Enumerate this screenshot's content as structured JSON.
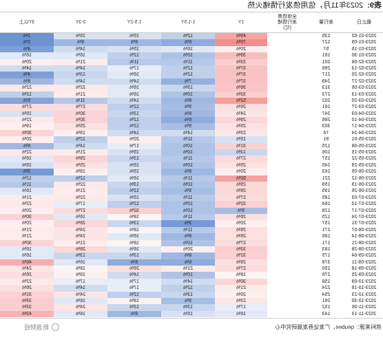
{
  "title": {
    "label": "表9:",
    "text": "2023年11月，信用债发行情绪火热"
  },
  "headers": [
    "截止日",
    "发行量",
    "全体债券发行情绪",
    "1Y",
    "1-1.5Y",
    "1.5-2Y",
    "2-3Y",
    "3Y以上"
  ],
  "header_stack_top": "全体债券",
  "header_stack_mid": "发行情绪",
  "header_stack_bot": "(亿)",
  "rows": [
    {
      "d": "2023-01-02",
      "v": "135",
      "c": [
        "49%",
        "12%",
        "15%",
        "15%",
        "2%"
      ]
    },
    {
      "d": "2023-01-09",
      "v": "127",
      "c": [
        "70%",
        "6%",
        "8%",
        "8%",
        "0%"
      ]
    },
    {
      "d": "2023-01-16",
      "v": "57",
      "c": [
        "20%",
        "16%",
        "15%",
        "14%",
        "4%"
      ]
    },
    {
      "d": "2023-01-30",
      "v": "161",
      "c": [
        "39%",
        "10%",
        "12%",
        "16%",
        "16%"
      ]
    },
    {
      "d": "2023-02-06",
      "v": "201",
      "c": [
        "33%",
        "11%",
        "11%",
        "21%",
        "20%"
      ]
    },
    {
      "d": "2023-02-13",
      "v": "266",
      "c": [
        "37%",
        "12%",
        "17%",
        "14%",
        "14%"
      ]
    },
    {
      "d": "2023-02-20",
      "v": "217",
      "c": [
        "37%",
        "12%",
        "16%",
        "13%",
        "4%"
      ]
    },
    {
      "d": "2023-02-27",
      "v": "249",
      "c": [
        "37%",
        "7%",
        "14%",
        "14%",
        "8%"
      ]
    },
    {
      "d": "2023-03-06",
      "v": "313",
      "c": [
        "36%",
        "13%",
        "16%",
        "22%",
        "22%"
      ]
    },
    {
      "d": "2023-03-13",
      "v": "273",
      "c": [
        "33%",
        "10%",
        "16%",
        "21%",
        "12%"
      ]
    },
    {
      "d": "2023-03-20",
      "v": "202",
      "c": [
        "52%",
        "8%",
        "14%",
        "11%",
        "5%"
      ]
    },
    {
      "d": "2023-03-27",
      "v": "161",
      "c": [
        "26%",
        "9%",
        "12%",
        "27%",
        "27%"
      ]
    },
    {
      "d": "2023-04-03",
      "v": "247",
      "c": [
        "24%",
        "8%",
        "13%",
        "30%",
        "15%"
      ]
    },
    {
      "d": "2023-04-10",
      "v": "286",
      "c": [
        "29%",
        "6%",
        "12%",
        "30%",
        "22%"
      ]
    },
    {
      "d": "2023-04-17",
      "v": "303",
      "c": [
        "25%",
        "9%",
        "12%",
        "25%",
        "19%"
      ]
    },
    {
      "d": "2023-04-24",
      "v": "74",
      "c": [
        "23%",
        "14%",
        "14%",
        "19%",
        "30%"
      ]
    },
    {
      "d": "2023-05-01",
      "v": "91",
      "c": [
        "15%",
        "11%",
        "20%",
        "12%",
        "20%"
      ]
    },
    {
      "d": "2023-05-08",
      "v": "125",
      "c": [
        "31%",
        "10%",
        "17%",
        "14%",
        "8%"
      ]
    },
    {
      "d": "2023-05-15",
      "v": "106",
      "c": [
        "13%",
        "10%",
        "15%",
        "21%",
        "22%"
      ]
    },
    {
      "d": "2023-05-22",
      "v": "157",
      "c": [
        "27%",
        "11%",
        "13%",
        "29%",
        "16%"
      ]
    },
    {
      "d": "2023-05-29",
      "v": "245",
      "c": [
        "25%",
        "10%",
        "15%",
        "25%",
        "15%"
      ]
    },
    {
      "d": "2023-06-05",
      "v": "163",
      "c": [
        "20%",
        "8%",
        "15%",
        "19%",
        "3%"
      ]
    },
    {
      "d": "2023-06-12",
      "v": "221",
      "c": [
        "50%",
        "11%",
        "16%",
        "12%",
        "12%"
      ]
    },
    {
      "d": "2023-06-19",
      "v": "159",
      "c": [
        "29%",
        "10%",
        "13%",
        "22%",
        "11%"
      ]
    },
    {
      "d": "2023-06-26",
      "v": "195",
      "c": [
        "28%",
        "9%",
        "12%",
        "21%",
        "16%"
      ]
    },
    {
      "d": "2023-07-03",
      "v": "185",
      "c": [
        "27%",
        "11%",
        "15%",
        "22%",
        "21%"
      ]
    },
    {
      "d": "2023-07-10",
      "v": "164",
      "c": [
        "32%",
        "10%",
        "12%",
        "17%",
        "22%"
      ]
    },
    {
      "d": "2023-07-17",
      "v": "128",
      "c": [
        "9%",
        "10%",
        "32%",
        "27%",
        "20%"
      ]
    },
    {
      "d": "2023-07-24",
      "v": "125",
      "c": [
        "26%",
        "11%",
        "18%",
        "16%",
        "30%"
      ]
    },
    {
      "d": "2023-07-31",
      "v": "157",
      "c": [
        "20%",
        "3%",
        "13%",
        "28%",
        "20%"
      ]
    },
    {
      "d": "2023-08-07",
      "v": "271",
      "c": [
        "26%",
        "11%",
        "18%",
        "24%",
        "21%"
      ]
    },
    {
      "d": "2023-08-14",
      "v": "186",
      "c": [
        "26%",
        "8%",
        "16%",
        "24%",
        "21%"
      ]
    },
    {
      "d": "2023-08-21",
      "v": "171",
      "c": [
        "27%",
        "10%",
        "18%",
        "21%",
        "30%"
      ]
    },
    {
      "d": "2023-08-28",
      "v": "183",
      "c": [
        "33%",
        "20%",
        "16%",
        "28%",
        "16%"
      ]
    },
    {
      "d": "2023-09-04",
      "v": "175",
      "c": [
        "32%",
        "8%",
        "13%",
        "13%",
        "16%"
      ]
    },
    {
      "d": "2023-09-11",
      "v": "378",
      "c": [
        "26%",
        "6%",
        "6%",
        "16%",
        "46%"
      ]
    },
    {
      "d": "2023-09-18",
      "v": "150",
      "c": [
        "27%",
        "21%",
        "26%",
        "18%",
        "24%"
      ]
    },
    {
      "d": "2023-09-25",
      "v": "276",
      "c": [
        "18%",
        "10%",
        "14%",
        "19%",
        "26%"
      ]
    },
    {
      "d": "2023-10-09",
      "v": "158",
      "c": [
        "30%",
        "14%",
        "17%",
        "17%",
        "22%"
      ]
    },
    {
      "d": "2023-10-16",
      "v": "224",
      "c": [
        "21%",
        "12%",
        "17%",
        "14%",
        "26%"
      ]
    },
    {
      "d": "2023-10-23",
      "v": "254",
      "c": [
        "20%",
        "13%",
        "12%",
        "24%",
        "31%"
      ]
    },
    {
      "d": "2023-10-30",
      "v": "261",
      "c": [
        "23%",
        "9%",
        "19%",
        "16%",
        "33%"
      ]
    },
    {
      "d": "2023-11-06",
      "v": "152",
      "c": [
        "17%",
        "13%",
        "13%",
        "24%",
        "33%"
      ]
    },
    {
      "d": "2023-11-13",
      "v": "143",
      "c": [
        "16%",
        "15%",
        "8%",
        "16%",
        "43%"
      ]
    }
  ],
  "source_text": "资料来源：qeubee，广发证券发展研究中心",
  "logo_text": "新浪财经",
  "colors": {
    "hot": "#f08080",
    "cold": "#5a86c8"
  }
}
